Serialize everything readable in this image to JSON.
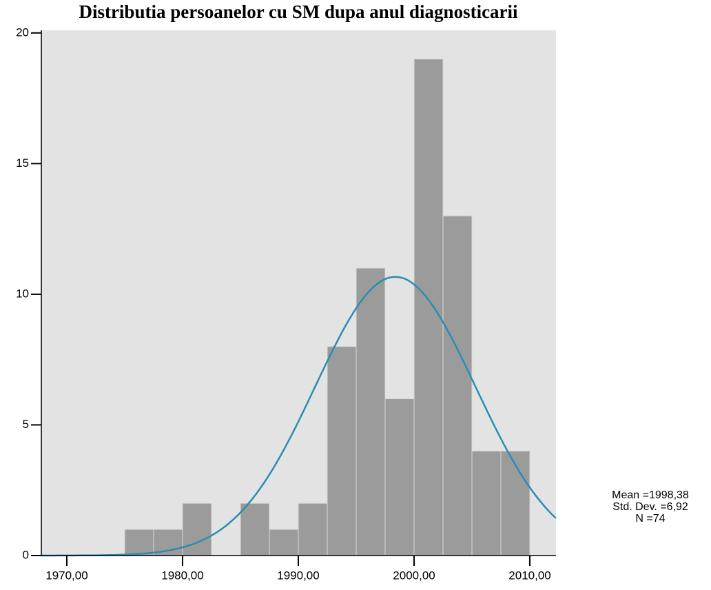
{
  "chart_data": {
    "type": "histogram",
    "title": "Distributia persoanelor cu SM dupa anul diagnosticarii",
    "bins": [
      1975,
      1977.5,
      1980,
      1982.5,
      1985,
      1987.5,
      1990,
      1992.5,
      1995,
      1997.5,
      2000,
      2002.5,
      2005,
      2007.5,
      2010
    ],
    "values": [
      1,
      1,
      2,
      0,
      2,
      1,
      2,
      8,
      11,
      6,
      19,
      13,
      4,
      4
    ],
    "color": "#9b9b9b",
    "curve_color": "#2a8db3",
    "background": "#e3e3e3",
    "xlim": [
      1967.8,
      2012.26
    ],
    "xticks": [
      {
        "value": 1970,
        "label": "1970,00"
      },
      {
        "value": 1980,
        "label": "1980,00"
      },
      {
        "value": 1990,
        "label": "1990,00"
      },
      {
        "value": 2000,
        "label": "2000,00"
      },
      {
        "value": 2010,
        "label": "2010,00"
      }
    ],
    "ylim": [
      0,
      20.1
    ],
    "yticks": [
      0,
      5,
      10,
      15,
      20
    ],
    "stats": {
      "mean": {
        "value": 1998.38,
        "label": "Mean =1998,38"
      },
      "sd": {
        "value": 6.92,
        "label": "Std. Dev. =6,92"
      },
      "n": {
        "value": 74,
        "label": "N =74"
      }
    }
  }
}
